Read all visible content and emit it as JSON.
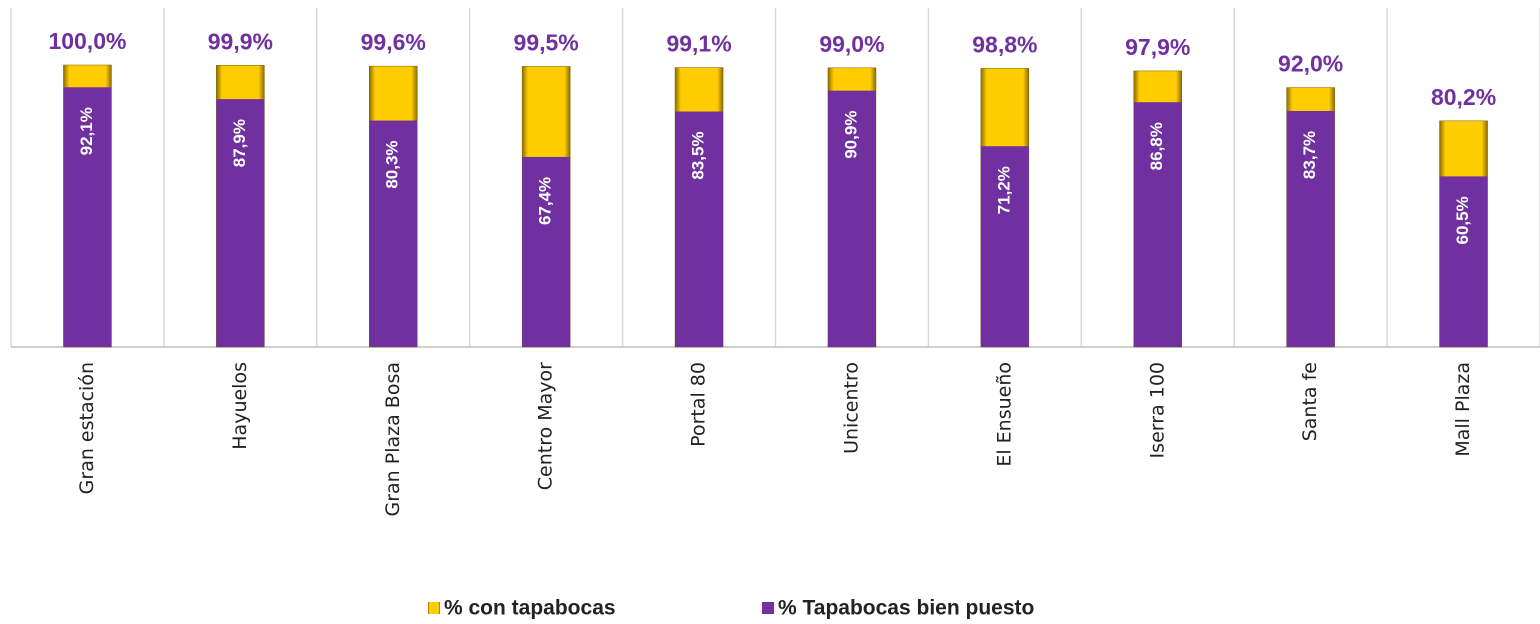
{
  "chart_data": {
    "type": "bar",
    "categories": [
      "Gran estación",
      "Hayuelos",
      "Gran Plaza Bosa",
      "Centro Mayor",
      "Portal 80",
      "Unicentro",
      "El Ensueño",
      "Iserra 100",
      "Santa fe",
      "Mall Plaza"
    ],
    "series": [
      {
        "name": "% con tapabocas",
        "color": "#ffcc00",
        "values": [
          100.0,
          99.9,
          99.6,
          99.5,
          99.1,
          99.0,
          98.8,
          97.9,
          92.0,
          80.2
        ],
        "value_labels": [
          "100,0%",
          "99,9%",
          "99,6%",
          "99,5%",
          "99,1%",
          "99,0%",
          "98,8%",
          "97,9%",
          "92,0%",
          "80,2%"
        ]
      },
      {
        "name": "% Tapabocas bien puesto",
        "color": "#7030a0",
        "values": [
          92.1,
          87.9,
          80.3,
          67.4,
          83.5,
          90.9,
          71.2,
          86.8,
          83.7,
          60.5
        ],
        "value_labels": [
          "92,1%",
          "87,9%",
          "80,3%",
          "67,4%",
          "83,5%",
          "90,9%",
          "71,2%",
          "86,8%",
          "83,7%",
          "60,5%"
        ]
      }
    ],
    "ylim": [
      0,
      100
    ]
  }
}
